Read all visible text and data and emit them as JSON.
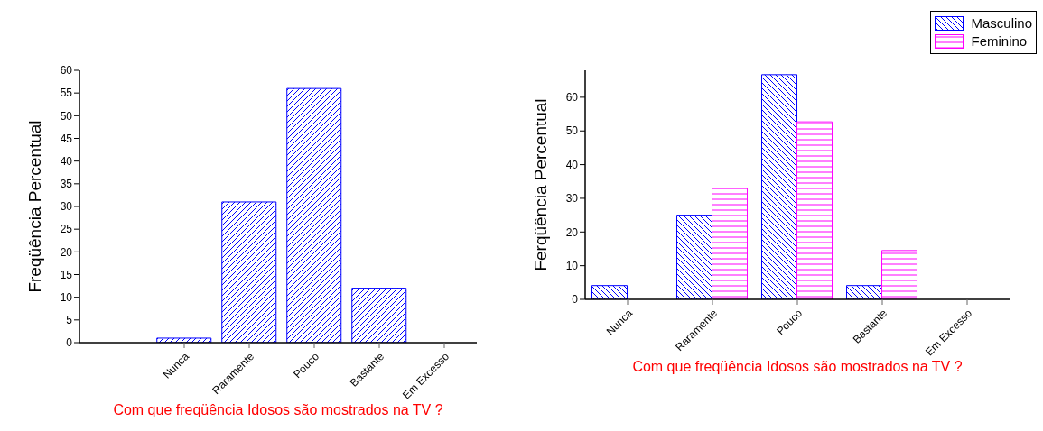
{
  "chart_data": [
    {
      "type": "bar",
      "xlabel": "Com que freqüência Idosos são mostrados na TV ?",
      "ylabel": "Freqüência Percentual",
      "categories": [
        "Nunca",
        "Raramente",
        "Pouco",
        "Bastante",
        "Em Excesso"
      ],
      "values": [
        1,
        31,
        56,
        12,
        0
      ],
      "color": "#0000ff",
      "ylim": [
        0,
        60
      ],
      "yticks": [
        0,
        5,
        10,
        15,
        20,
        25,
        30,
        35,
        40,
        45,
        50,
        55,
        60
      ]
    },
    {
      "type": "bar",
      "xlabel": "Com que freqüência Idosos são mostrados na TV ?",
      "ylabel": "Ferqüência Percentual",
      "categories": [
        "Nunca",
        "Raramente",
        "Pouco",
        "Bastante",
        "Em Excesso"
      ],
      "legend": "top right",
      "ylim": [
        0,
        68
      ],
      "yticks": [
        0,
        10,
        20,
        30,
        40,
        50,
        60
      ],
      "series": [
        {
          "name": "Masculino",
          "color": "#0000ff",
          "values": [
            4.1,
            25,
            66.7,
            4.1,
            0
          ]
        },
        {
          "name": "Feminino",
          "color": "#ff00ff",
          "values": [
            0,
            33,
            52.7,
            14.5,
            0
          ]
        }
      ]
    }
  ]
}
